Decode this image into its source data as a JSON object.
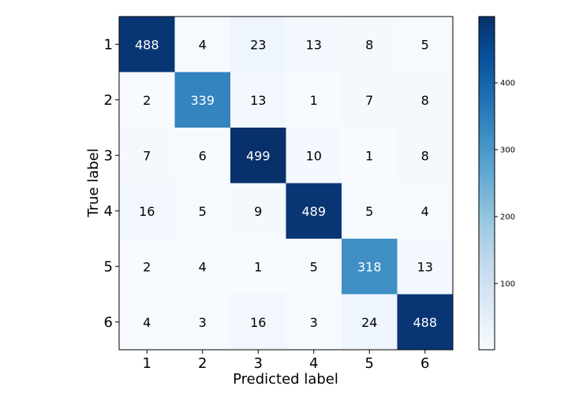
{
  "chart_data": {
    "type": "heatmap",
    "title": "",
    "xlabel": "Predicted label",
    "ylabel": "True label",
    "x_categories": [
      "1",
      "2",
      "3",
      "4",
      "5",
      "6"
    ],
    "y_categories": [
      "1",
      "2",
      "3",
      "4",
      "5",
      "6"
    ],
    "matrix": [
      [
        488,
        4,
        23,
        13,
        8,
        5
      ],
      [
        2,
        339,
        13,
        1,
        7,
        8
      ],
      [
        7,
        6,
        499,
        10,
        1,
        8
      ],
      [
        16,
        5,
        9,
        489,
        5,
        4
      ],
      [
        2,
        4,
        1,
        5,
        318,
        13
      ],
      [
        4,
        3,
        16,
        3,
        24,
        488
      ]
    ],
    "colormap": "Blues",
    "color_range": [
      1,
      499
    ],
    "colorbar_ticks": [
      100,
      200,
      300,
      400
    ],
    "colors": {
      "low": "#f7fbff",
      "high": "#08306b",
      "text_dark": "#000000",
      "text_light": "#ffffff"
    },
    "grid": false
  }
}
